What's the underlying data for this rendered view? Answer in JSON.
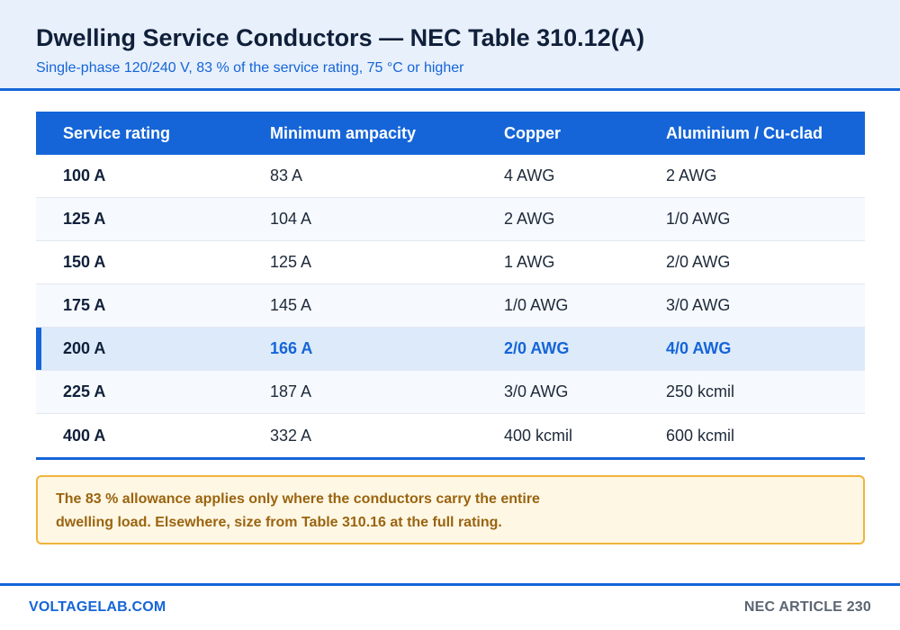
{
  "header": {
    "title": "Dwelling Service Conductors — NEC Table 310.12(A)",
    "subtitle": "Single-phase 120/240 V, 83 % of the service rating, 75 °C or higher"
  },
  "table": {
    "columns": [
      "Service rating",
      "Minimum ampacity",
      "Copper",
      "Aluminium / Cu-clad"
    ],
    "rows": [
      {
        "rating": "100 A",
        "ampacity": "83 A",
        "copper": "4 AWG",
        "aluminium": "2 AWG"
      },
      {
        "rating": "125 A",
        "ampacity": "104 A",
        "copper": "2 AWG",
        "aluminium": "1/0 AWG"
      },
      {
        "rating": "150 A",
        "ampacity": "125 A",
        "copper": "1 AWG",
        "aluminium": "2/0 AWG"
      },
      {
        "rating": "175 A",
        "ampacity": "145 A",
        "copper": "1/0 AWG",
        "aluminium": "3/0 AWG"
      },
      {
        "rating": "200 A",
        "ampacity": "166 A",
        "copper": "2/0 AWG",
        "aluminium": "4/0 AWG"
      },
      {
        "rating": "225 A",
        "ampacity": "187 A",
        "copper": "3/0 AWG",
        "aluminium": "250 kcmil"
      },
      {
        "rating": "400 A",
        "ampacity": "332 A",
        "copper": "400 kcmil",
        "aluminium": "600 kcmil"
      }
    ],
    "highlighted_row": 4
  },
  "note": {
    "text": "The 83 % allowance applies only where the conductors carry the entire dwelling load. Elsewhere, size from Table 310.16 at the full rating."
  },
  "footer": {
    "left": "VOLTAGELAB.COM",
    "right": "NEC ARTICLE 230"
  },
  "colors": {
    "accent": "#1565d8",
    "note_border": "#f0b43c",
    "note_text": "#9a6410"
  }
}
